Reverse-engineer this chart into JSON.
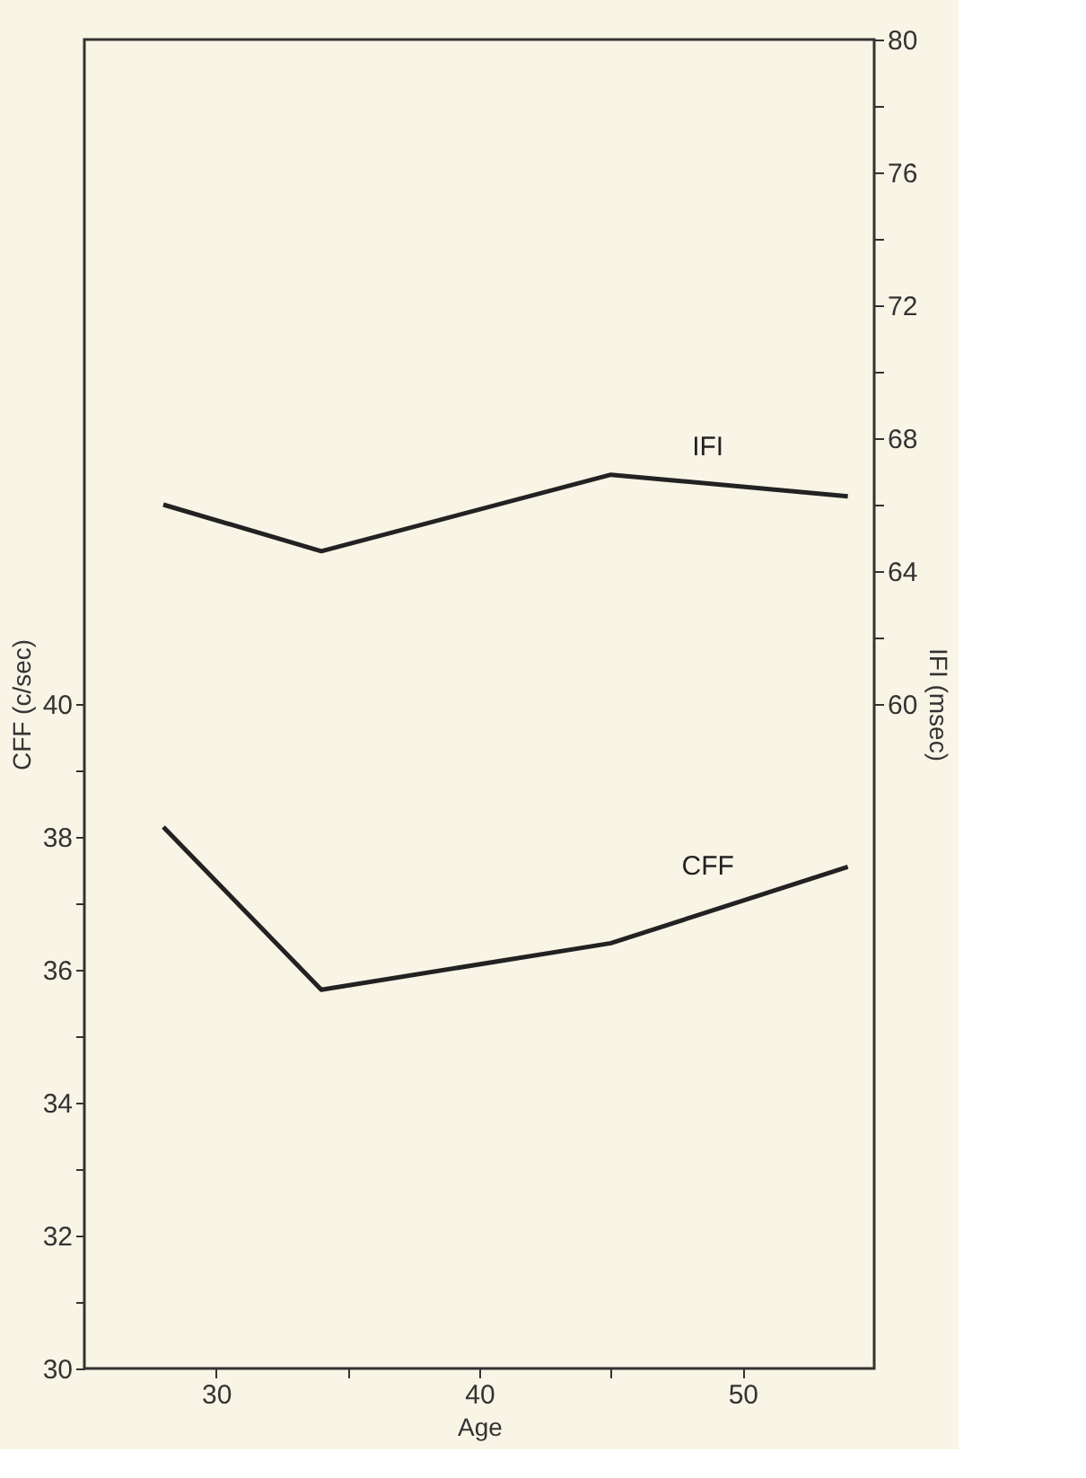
{
  "chart_data": {
    "type": "line",
    "xlabel": "Age",
    "ylabel": "CFF (c/sec)",
    "y2label": "IFI (msec)",
    "x": [
      28,
      34,
      45,
      54
    ],
    "xlim": [
      25,
      55
    ],
    "xticks": [
      30,
      {
        "value": 35,
        "label": null
      },
      40,
      {
        "value": 45,
        "label": null
      },
      50
    ],
    "ylim": [
      30,
      50
    ],
    "yticks": [
      30,
      {
        "value": 31,
        "label": null
      },
      32,
      {
        "value": 33,
        "label": null
      },
      34,
      {
        "value": 35,
        "label": null
      },
      36,
      {
        "value": 37,
        "label": null
      },
      38,
      {
        "value": 39,
        "label": null
      },
      40
    ],
    "y2lim": [
      40,
      80
    ],
    "y2ticks": [
      60,
      {
        "value": 62,
        "label": null
      },
      64,
      {
        "value": 66,
        "label": null
      },
      68,
      {
        "value": 70,
        "label": null
      },
      72,
      {
        "value": 74,
        "label": null
      },
      76,
      {
        "value": 78,
        "label": null
      },
      80
    ],
    "grid": false,
    "marker": "none",
    "line_style": "solid",
    "series": [
      {
        "name": "CFF",
        "color": "#222222",
        "values": [
          38.15,
          35.7,
          36.4,
          37.55
        ]
      },
      {
        "name": "IFI",
        "color": "#222222",
        "axis": "y2",
        "values": [
          66,
          64.6,
          66.9,
          66.25
        ]
      }
    ]
  }
}
